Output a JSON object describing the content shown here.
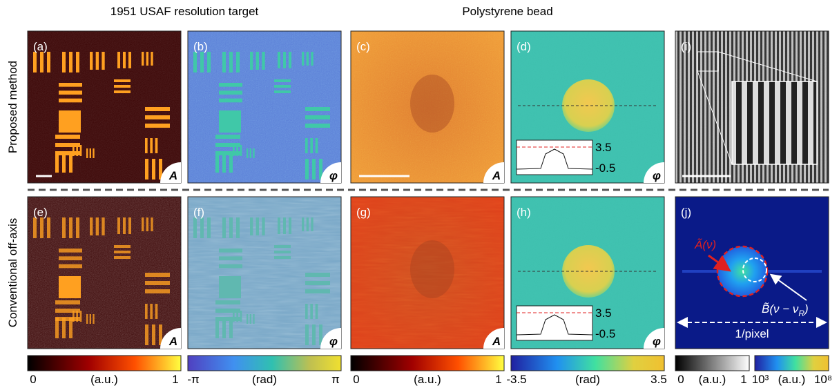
{
  "headers": {
    "usaf": "1951 USAF resolution target",
    "bead": "Polystyrene bead"
  },
  "rows": [
    "Proposed method",
    "Conventional off-axis"
  ],
  "panels": [
    {
      "label": "(a)",
      "symbol": "A"
    },
    {
      "label": "(b)",
      "symbol": "φ"
    },
    {
      "label": "(c)",
      "symbol": "A"
    },
    {
      "label": "(d)",
      "symbol": "φ"
    },
    {
      "label": "(i)"
    },
    {
      "label": "(e)",
      "symbol": "A"
    },
    {
      "label": "(f)",
      "symbol": "φ"
    },
    {
      "label": "(g)",
      "symbol": "A"
    },
    {
      "label": "(h)",
      "symbol": "φ"
    },
    {
      "label": "(j)"
    }
  ],
  "insets": [
    {
      "top": "3.5",
      "bottom": "-0.5"
    },
    {
      "top": "3.5",
      "bottom": "-0.5"
    }
  ],
  "colorbars": [
    {
      "labels": [
        "0",
        "(a.u.)",
        "1"
      ]
    },
    {
      "labels": [
        "-π",
        "(rad)",
        "π"
      ]
    },
    {
      "labels": [
        "0",
        "(a.u.)",
        "1"
      ]
    },
    {
      "labels": [
        "-3.5",
        "(rad)",
        "3.5"
      ]
    },
    {
      "labels": [
        "0",
        "(a.u.)",
        "1"
      ]
    },
    {
      "labels": [
        "10³",
        "(a.u.)",
        "10⁸"
      ]
    }
  ],
  "panel_j": {
    "signal": "Ã(ν)",
    "twin": {
      "base": "B̃(ν − ν",
      "sub": "R",
      "end": ")"
    },
    "span": "1/pixel"
  }
}
